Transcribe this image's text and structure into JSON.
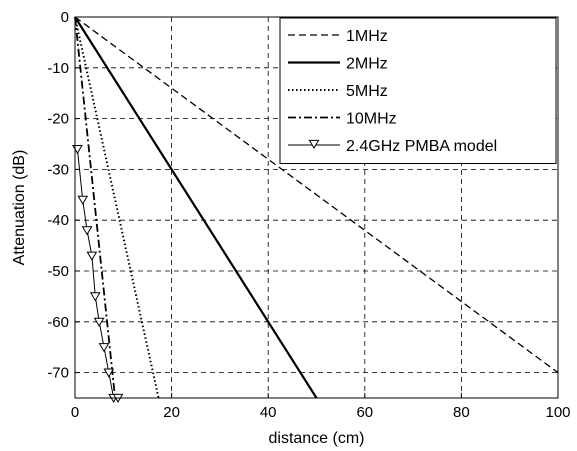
{
  "chart_data": {
    "type": "line",
    "title": "",
    "xlabel": "distance (cm)",
    "ylabel": "Attenuation (dB)",
    "xlim": [
      0,
      100
    ],
    "ylim": [
      -75,
      0
    ],
    "x_ticks": [
      0,
      20,
      40,
      60,
      80,
      100
    ],
    "y_ticks": [
      0,
      -10,
      -20,
      -30,
      -40,
      -50,
      -60,
      -70
    ],
    "grid": true,
    "legend_position": "top-right",
    "series": [
      {
        "name": "1MHz",
        "style": "dashed",
        "color": "#000000",
        "x": [
          0,
          100
        ],
        "y": [
          0,
          -70
        ]
      },
      {
        "name": "2MHz",
        "style": "solid",
        "color": "#000000",
        "x": [
          0,
          50
        ],
        "y": [
          0,
          -75
        ]
      },
      {
        "name": "5MHz",
        "style": "dotted",
        "color": "#000000",
        "x": [
          0,
          17.3
        ],
        "y": [
          0,
          -75
        ]
      },
      {
        "name": "10MHz",
        "style": "dashdot",
        "color": "#000000",
        "x": [
          0,
          8.3
        ],
        "y": [
          0,
          -75
        ]
      },
      {
        "name": "2.4GHz PMBA model",
        "style": "solid-triangle-markers",
        "color": "#000000",
        "x": [
          0.5,
          1.6,
          2.5,
          3.5,
          4.2,
          5.0,
          6.0,
          7.0,
          8.0,
          8.9
        ],
        "y": [
          -26,
          -36,
          -42,
          -47,
          -55,
          -60,
          -65,
          -70,
          -75,
          -75
        ]
      }
    ]
  }
}
